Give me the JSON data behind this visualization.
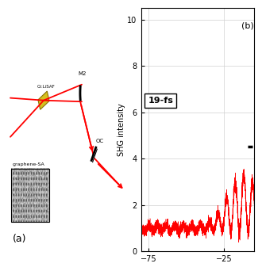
{
  "panel_a_label": "(a)",
  "panel_b_label": "(b)",
  "shg_ylabel": "SHG intensity",
  "shg_yticks": [
    0,
    2,
    4,
    6,
    8,
    10
  ],
  "shg_xticks": [
    -75,
    -25
  ],
  "shg_xlim": [
    -80,
    -5
  ],
  "shg_ylim": [
    0,
    10.5
  ],
  "annotation_text": "19-fs",
  "bg_color": "#ffffff",
  "red_color": "#ff0000",
  "black_color": "#000000",
  "cr_lisaf": "Cr:LiSAF",
  "m2_label": "M2",
  "oc_label": "OC",
  "graphene_sa": "graphene-SA"
}
